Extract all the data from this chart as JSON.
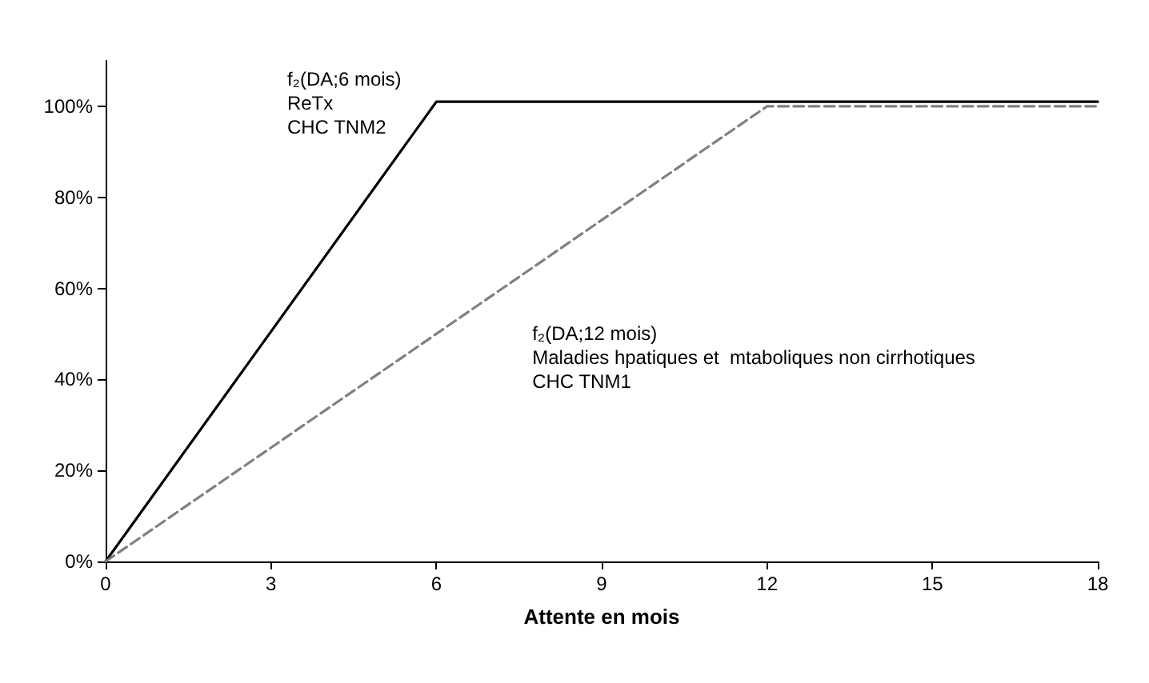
{
  "chart_data": {
    "type": "line",
    "xlabel": "Attente en mois",
    "series": [
      {
        "color": "#000000",
        "line_style": "solid",
        "x": [
          0,
          6,
          18
        ],
        "values": [
          0,
          101,
          101
        ]
      },
      {
        "color": "#808080",
        "line_style": "dashed",
        "x": [
          0,
          12,
          18
        ],
        "values": [
          0,
          100,
          100
        ]
      }
    ],
    "xlim": [
      0,
      18
    ],
    "xticks": [
      0,
      3,
      6,
      9,
      12,
      15,
      18
    ],
    "ylim": [
      0,
      110
    ],
    "yticks": [
      {
        "value": 0,
        "label": "0%"
      },
      {
        "value": 20,
        "label": "20%"
      },
      {
        "value": 40,
        "label": "40%"
      },
      {
        "value": 60,
        "label": "60%"
      },
      {
        "value": 80,
        "label": "80%"
      },
      {
        "value": 100,
        "label": "100%"
      }
    ],
    "annotations": [
      "f₂(DA;6 mois)\nReTx\nCHC TNM2",
      "f₂(DA;12 mois)\nMaladies hpatiques et  mtaboliques non cirrhotiques\nCHC TNM1"
    ],
    "grid": false,
    "marker": "none"
  }
}
